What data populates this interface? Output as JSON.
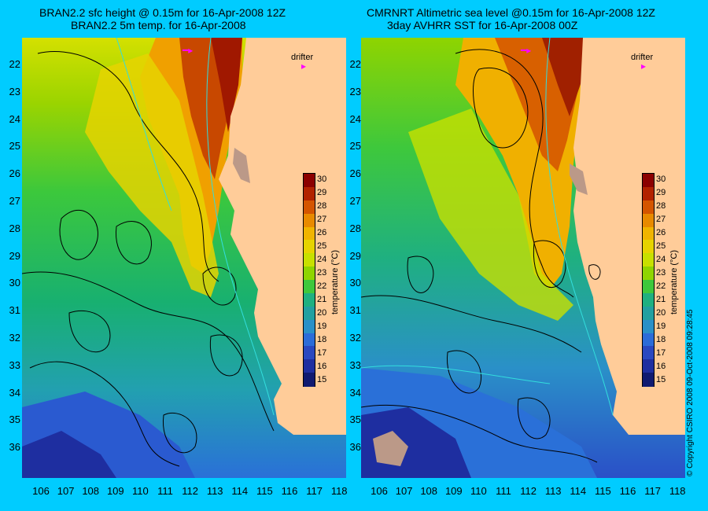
{
  "left": {
    "title_line1": "BRAN2.2 sfc height @ 0.15m for 16-Apr-2008 12Z",
    "title_line2": "BRAN2.2 5m temp. for 16-Apr-2008",
    "drifter_label": "drifter"
  },
  "right": {
    "title_line1": "CMRNRT Altimetric sea level  @0.15m  for 16-Apr-2008 12Z",
    "title_line2": "3day AVHRR SST for 16-Apr-2008 00Z",
    "drifter_label": "drifter"
  },
  "axes": {
    "lat_labels": [
      "22",
      "23",
      "24",
      "25",
      "26",
      "27",
      "28",
      "29",
      "30",
      "31",
      "32",
      "33",
      "34",
      "35",
      "36"
    ],
    "lon_labels": [
      "106",
      "107",
      "108",
      "109",
      "110",
      "111",
      "112",
      "113",
      "114",
      "115",
      "116",
      "117",
      "118"
    ]
  },
  "colorbar": {
    "title": "temperature (°C)",
    "ticks": [
      "30",
      "29",
      "28",
      "27",
      "26",
      "25",
      "24",
      "23",
      "22",
      "21",
      "20",
      "19",
      "18",
      "17",
      "16",
      "15"
    ],
    "colors": [
      "#8b0000",
      "#b22200",
      "#d45500",
      "#e88a00",
      "#f0b400",
      "#e6d400",
      "#c8e000",
      "#8fd400",
      "#3ec83c",
      "#1fb080",
      "#22a0a0",
      "#2a90c8",
      "#2c6cd8",
      "#2a48c0",
      "#1e2ea0",
      "#101a70"
    ]
  },
  "copyright": "© Copyright CSIRO 2008   09-Oct-2008 09:28:45"
}
